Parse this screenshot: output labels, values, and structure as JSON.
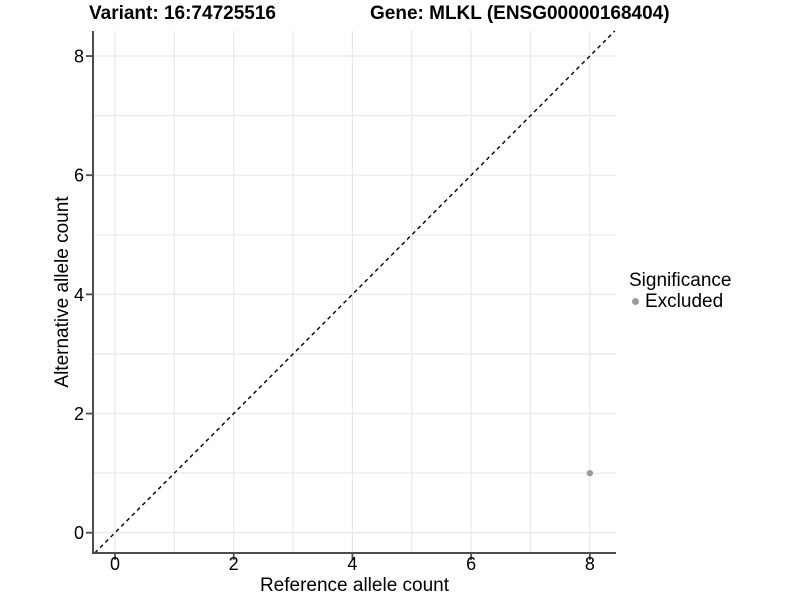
{
  "titles": {
    "variant": "Variant: 16:74725516",
    "gene": "Gene: MLKL (ENSG00000168404)"
  },
  "legend": {
    "title": "Significance",
    "items": [
      {
        "label": "Excluded",
        "color": "#9b9b9b"
      }
    ]
  },
  "colors": {
    "axis_line": "#4d4d4d",
    "tick_mark": "#4d4d4d",
    "gridline": "#e8e8e8",
    "text": "#000000",
    "background": "#ffffff",
    "dashed_line": "#000000",
    "point": "#9b9b9b"
  },
  "chart_data": {
    "type": "scatter",
    "title_left": "Variant: 16:74725516",
    "title_right": "Gene: MLKL (ENSG00000168404)",
    "xlabel": "Reference allele count",
    "ylabel": "Alternative allele count",
    "xlim": [
      -0.37,
      8.44
    ],
    "ylim": [
      -0.34,
      8.42
    ],
    "x_ticks": [
      0,
      2,
      4,
      6,
      8
    ],
    "y_ticks": [
      0,
      2,
      4,
      6,
      8
    ],
    "gridline_step": 1,
    "grid": true,
    "points": [
      {
        "x": 8,
        "y": 1,
        "series": "Excluded"
      }
    ],
    "series": [
      {
        "name": "Excluded",
        "color": "#9b9b9b"
      }
    ],
    "reference_line": {
      "kind": "identity",
      "style": "dashed",
      "color": "#000000"
    },
    "legend_title": "Significance",
    "legend_position": "right"
  }
}
